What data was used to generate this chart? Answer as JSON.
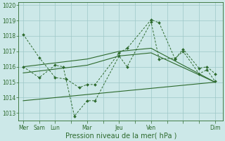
{
  "bg_color": "#cce8e8",
  "grid_color": "#9ec8c8",
  "line_color": "#2d6a2d",
  "xlabel": "Pression niveau de la mer( hPa )",
  "xlabel_fontsize": 7,
  "ylim": [
    1012.5,
    1020.2
  ],
  "yticks": [
    1013,
    1014,
    1015,
    1016,
    1017,
    1018,
    1019,
    1020
  ],
  "ytick_fontsize": 5.5,
  "xtick_labels": [
    "Mer",
    "Sam",
    "Lun",
    "",
    "Mar",
    "",
    "Jeu",
    "",
    "Ven",
    "",
    "",
    "",
    "Dim"
  ],
  "xtick_positions": [
    0,
    1,
    2,
    3,
    4,
    5,
    6,
    7,
    8,
    9,
    10,
    11,
    12
  ],
  "xtick_fontsize": 5.5,
  "series1_x": [
    0,
    1,
    2,
    2.7,
    3.5,
    4,
    4.5,
    6,
    6.5,
    8,
    8.5,
    9.5,
    10,
    11,
    11.5,
    12
  ],
  "series1_y": [
    1018.1,
    1016.6,
    1015.3,
    1015.2,
    1014.65,
    1014.85,
    1014.85,
    1016.9,
    1017.2,
    1019.05,
    1018.85,
    1016.5,
    1017.15,
    1015.9,
    1016.0,
    1015.55
  ],
  "series2_x": [
    0,
    1,
    2,
    2.5,
    3.2,
    4,
    4.5,
    6,
    6.5,
    8,
    8.5,
    9.5,
    10,
    11,
    11.5,
    12
  ],
  "series2_y": [
    1016.0,
    1015.3,
    1016.1,
    1016.0,
    1012.8,
    1013.8,
    1013.8,
    1016.7,
    1016.0,
    1018.9,
    1016.5,
    1016.55,
    1017.0,
    1015.55,
    1015.8,
    1015.05
  ],
  "series3_x": [
    0,
    4,
    6,
    8,
    12
  ],
  "series3_y": [
    1016.0,
    1016.5,
    1017.0,
    1017.2,
    1015.0
  ],
  "series4_x": [
    0,
    4,
    6,
    8,
    12
  ],
  "series4_y": [
    1015.6,
    1016.1,
    1016.7,
    1016.9,
    1015.0
  ],
  "series5_x": [
    0,
    12
  ],
  "series5_y": [
    1013.8,
    1015.0
  ]
}
